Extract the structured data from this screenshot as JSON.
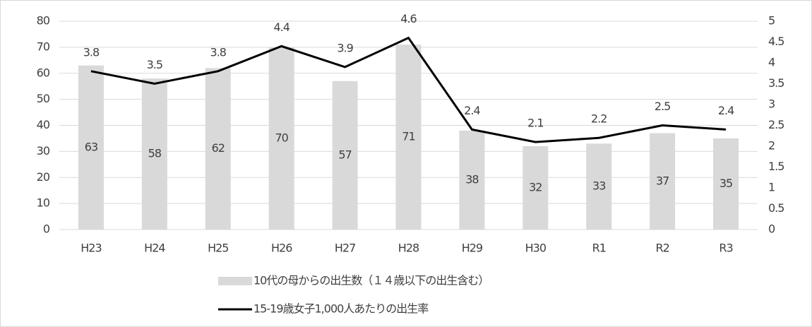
{
  "chart_data": {
    "type": "combo",
    "categories": [
      "H23",
      "H24",
      "H25",
      "H26",
      "H27",
      "H28",
      "H29",
      "H30",
      "R1",
      "R2",
      "R3"
    ],
    "series": [
      {
        "name": "10代の母からの出生数（１４歳以下の出生含む）",
        "type": "bar",
        "color": "#d9d9d9",
        "values": [
          63,
          58,
          62,
          70,
          57,
          71,
          38,
          32,
          33,
          37,
          35
        ]
      },
      {
        "name": "15-19歳女子1,000人あたりの出生率",
        "type": "line",
        "axis": "y2",
        "color": "#000000",
        "values": [
          3.8,
          3.5,
          3.8,
          4.4,
          3.9,
          4.6,
          2.4,
          2.1,
          2.2,
          2.5,
          2.4
        ]
      }
    ],
    "ylim": [
      0,
      80
    ],
    "yticks": [
      0,
      10,
      20,
      30,
      40,
      50,
      60,
      70,
      80
    ],
    "y2lim": [
      0,
      5
    ],
    "y2ticks": [
      0,
      0.5,
      1,
      1.5,
      2,
      2.5,
      3,
      3.5,
      4,
      4.5,
      5
    ],
    "grid": true,
    "legend": "bottom"
  }
}
